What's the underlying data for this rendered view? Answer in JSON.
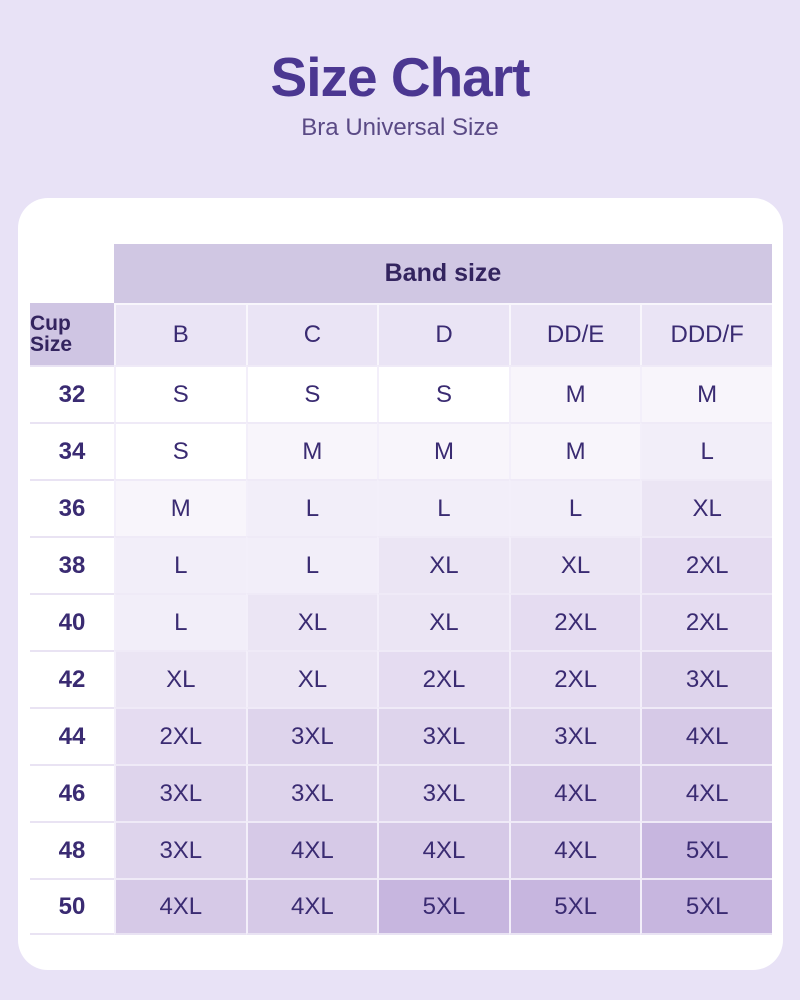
{
  "page": {
    "background_color": "#E8E2F6",
    "card_background_color": "#FFFFFF"
  },
  "header": {
    "title": "Size Chart",
    "subtitle": "Bra Universal Size",
    "title_color": "#4B3791",
    "subtitle_color": "#5A4A85"
  },
  "chart_data": {
    "type": "table",
    "title": "Size Chart",
    "subtitle": "Bra Universal Size",
    "column_group_label": "Band size",
    "row_group_label": "Cup Size",
    "columns": [
      "B",
      "C",
      "D",
      "DD/E",
      "DDD/F"
    ],
    "rows": [
      {
        "cup_size": "32",
        "values": [
          "S",
          "S",
          "S",
          "M",
          "M"
        ]
      },
      {
        "cup_size": "34",
        "values": [
          "S",
          "M",
          "M",
          "M",
          "L"
        ]
      },
      {
        "cup_size": "36",
        "values": [
          "M",
          "L",
          "L",
          "L",
          "XL"
        ]
      },
      {
        "cup_size": "38",
        "values": [
          "L",
          "L",
          "XL",
          "XL",
          "2XL"
        ]
      },
      {
        "cup_size": "40",
        "values": [
          "L",
          "XL",
          "XL",
          "2XL",
          "2XL"
        ]
      },
      {
        "cup_size": "42",
        "values": [
          "XL",
          "XL",
          "2XL",
          "2XL",
          "3XL"
        ]
      },
      {
        "cup_size": "44",
        "values": [
          "2XL",
          "3XL",
          "3XL",
          "3XL",
          "4XL"
        ]
      },
      {
        "cup_size": "46",
        "values": [
          "3XL",
          "3XL",
          "3XL",
          "4XL",
          "4XL"
        ]
      },
      {
        "cup_size": "48",
        "values": [
          "3XL",
          "4XL",
          "4XL",
          "4XL",
          "5XL"
        ]
      },
      {
        "cup_size": "50",
        "values": [
          "4XL",
          "4XL",
          "5XL",
          "5XL",
          "5XL"
        ]
      }
    ],
    "size_tier_colors": {
      "S": "#FFFFFF",
      "M": "#F8F5FB",
      "L": "#F2EEF9",
      "XL": "#EBE5F4",
      "2XL": "#E5DCF1",
      "3XL": "#DED4EC",
      "4XL": "#D6C9E7",
      "5XL": "#C7B6DF"
    },
    "header_colors": {
      "band_size_header_bg": "#D0C7E3",
      "cup_size_header_bg": "#CFC5E3",
      "column_header_bg": "#EAE4F5"
    },
    "text_color": "#3A2B72",
    "legend_position": "none",
    "grid_lines": "on"
  }
}
